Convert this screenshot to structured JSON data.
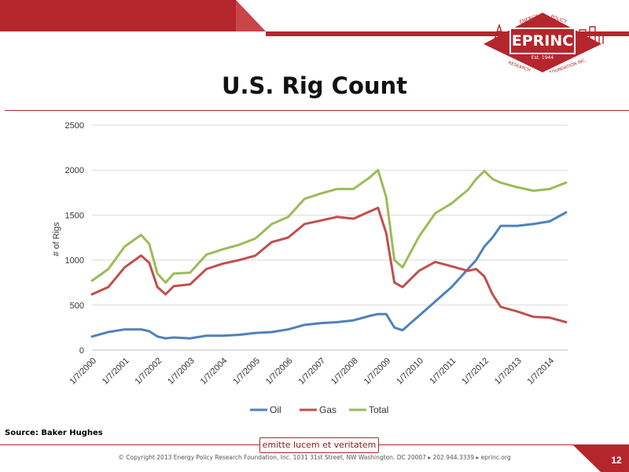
{
  "slide": {
    "title": "U.S. Rig Count",
    "source": "Source: Baker Hughes",
    "motto": "emitte lucem et veritatem",
    "copyright": "© Copyright 2013 Energy Policy Research Foundation, Inc. 1031 31st Street, NW Washington, DC 20007 ▸ 202.944.3339 ▸ eprinc.org",
    "page_number": "12",
    "logo": {
      "name": "EPRINC",
      "year": "Est. 1944",
      "arc_left": "ENERGY",
      "arc_right": "POLICY",
      "arc_bottom_left": "RESEARCH",
      "arc_bottom_right": "FOUNDATION INC."
    },
    "colors": {
      "brand_red": "#b5262c",
      "dark_red": "#8b1c20"
    }
  },
  "chart_data": {
    "type": "line",
    "title": "",
    "xlabel": "",
    "ylabel": "# of Rigs",
    "ylim": [
      0,
      2500
    ],
    "yticks": [
      0,
      500,
      1000,
      1500,
      2000,
      2500
    ],
    "xticks": [
      "1/7/2000",
      "1/7/2001",
      "1/7/2002",
      "1/7/2003",
      "1/7/2004",
      "1/7/2005",
      "1/7/2006",
      "1/7/2007",
      "1/7/2008",
      "1/7/2009",
      "1/7/2010",
      "1/7/2011",
      "1/7/2012",
      "1/7/2013",
      "1/7/2014"
    ],
    "grid": true,
    "legend_position": "bottom",
    "x": [
      2000.0,
      2000.5,
      2001.0,
      2001.5,
      2001.75,
      2002.0,
      2002.25,
      2002.5,
      2003.0,
      2003.5,
      2004.0,
      2004.5,
      2005.0,
      2005.5,
      2006.0,
      2006.5,
      2007.0,
      2007.5,
      2008.0,
      2008.5,
      2008.75,
      2009.0,
      2009.25,
      2009.5,
      2010.0,
      2010.5,
      2011.0,
      2011.5,
      2011.75,
      2012.0,
      2012.25,
      2012.5,
      2013.0,
      2013.5,
      2014.0,
      2014.5
    ],
    "series": [
      {
        "name": "Oil",
        "color": "#4f81bd",
        "values": [
          150,
          200,
          230,
          230,
          210,
          150,
          130,
          140,
          130,
          160,
          160,
          170,
          190,
          200,
          230,
          280,
          300,
          310,
          330,
          380,
          400,
          400,
          250,
          220,
          380,
          540,
          700,
          900,
          1000,
          1150,
          1250,
          1380,
          1380,
          1400,
          1430,
          1530
        ]
      },
      {
        "name": "Gas",
        "color": "#c0504d",
        "values": [
          620,
          700,
          920,
          1050,
          970,
          700,
          620,
          710,
          730,
          900,
          960,
          1000,
          1050,
          1200,
          1250,
          1400,
          1440,
          1480,
          1460,
          1540,
          1580,
          1300,
          750,
          700,
          880,
          980,
          930,
          880,
          900,
          820,
          620,
          480,
          430,
          370,
          360,
          310
        ]
      },
      {
        "name": "Total",
        "color": "#9bbb59",
        "values": [
          770,
          900,
          1150,
          1280,
          1180,
          850,
          750,
          850,
          860,
          1060,
          1120,
          1170,
          1240,
          1400,
          1480,
          1680,
          1740,
          1790,
          1790,
          1920,
          2000,
          1700,
          1000,
          920,
          1260,
          1520,
          1630,
          1780,
          1900,
          1990,
          1900,
          1860,
          1810,
          1770,
          1790,
          1860
        ]
      }
    ]
  }
}
